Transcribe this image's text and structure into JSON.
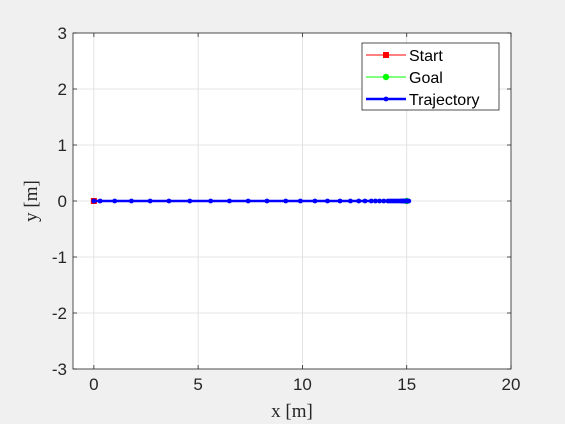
{
  "chart_data": {
    "type": "line",
    "title": "",
    "xlabel": "x [m]",
    "ylabel": "y [m]",
    "xlim": [
      -1,
      20
    ],
    "ylim": [
      -3,
      3
    ],
    "xticks": [
      0,
      5,
      10,
      15,
      20
    ],
    "yticks": [
      -3,
      -2,
      -1,
      0,
      1,
      2,
      3
    ],
    "grid": true,
    "legend_position": "top-right",
    "series": [
      {
        "name": "Start",
        "color": "#ff0000",
        "marker": "square",
        "x": [
          0
        ],
        "y": [
          0
        ]
      },
      {
        "name": "Goal",
        "color": "#00ff00",
        "marker": "circle",
        "x": [
          15
        ],
        "y": [
          0
        ]
      },
      {
        "name": "Trajectory",
        "color": "#0000ff",
        "marker": "dot",
        "x": [
          0,
          0.3,
          1.0,
          1.8,
          2.7,
          3.6,
          4.6,
          5.6,
          6.5,
          7.4,
          8.3,
          9.2,
          9.9,
          10.6,
          11.2,
          11.8,
          12.3,
          12.7,
          13.0,
          13.3,
          13.5,
          13.7,
          13.9,
          14.1,
          14.2,
          14.3,
          14.4,
          14.5,
          14.6,
          14.7,
          14.75,
          14.8,
          14.85,
          14.9,
          14.95,
          15.0,
          15.05,
          15.1
        ],
        "y": [
          0,
          0,
          0,
          0,
          0,
          0,
          0,
          0,
          0,
          0,
          0,
          0,
          0,
          0,
          0,
          0,
          0,
          0,
          0,
          0,
          0,
          0,
          0,
          0,
          0,
          0,
          0,
          0,
          0,
          0,
          0,
          0,
          0,
          0,
          0,
          0,
          0,
          0
        ]
      }
    ]
  }
}
